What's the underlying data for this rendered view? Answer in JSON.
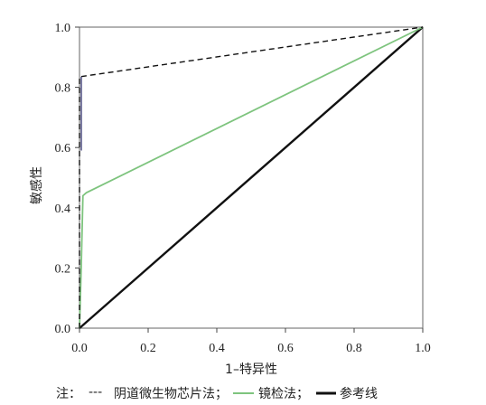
{
  "chart_data": {
    "type": "line",
    "xlabel": "1–特异性",
    "ylabel": "敏感性",
    "xlim": [
      0,
      1
    ],
    "ylim": [
      0,
      1
    ],
    "x_ticks": [
      "0.0",
      "0.2",
      "0.4",
      "0.6",
      "0.8",
      "1.0"
    ],
    "y_ticks": [
      "0.0",
      "0.2",
      "0.4",
      "0.6",
      "0.8",
      "1.0"
    ],
    "grid": false,
    "series": [
      {
        "name": "阴道微生物芯片法",
        "style": "dashed",
        "color": "#111111",
        "points": [
          [
            0,
            0
          ],
          [
            0,
            0.59
          ],
          [
            0,
            0.835
          ],
          [
            1,
            1
          ]
        ]
      },
      {
        "name": "镜检法",
        "style": "solid",
        "color": "#7ec47e",
        "points": [
          [
            0,
            0
          ],
          [
            0.005,
            0.2
          ],
          [
            0.01,
            0.44
          ],
          [
            0.02,
            0.45
          ],
          [
            1,
            1
          ]
        ]
      },
      {
        "name": "参考线",
        "style": "solid-thick",
        "color": "#111111",
        "points": [
          [
            0,
            0
          ],
          [
            1,
            1
          ]
        ]
      }
    ],
    "note": {
      "prefix": "注：",
      "dash_glyph": "---",
      "items": [
        "阴道微生物芯片法；",
        "镜检法；",
        "参考线"
      ]
    }
  }
}
